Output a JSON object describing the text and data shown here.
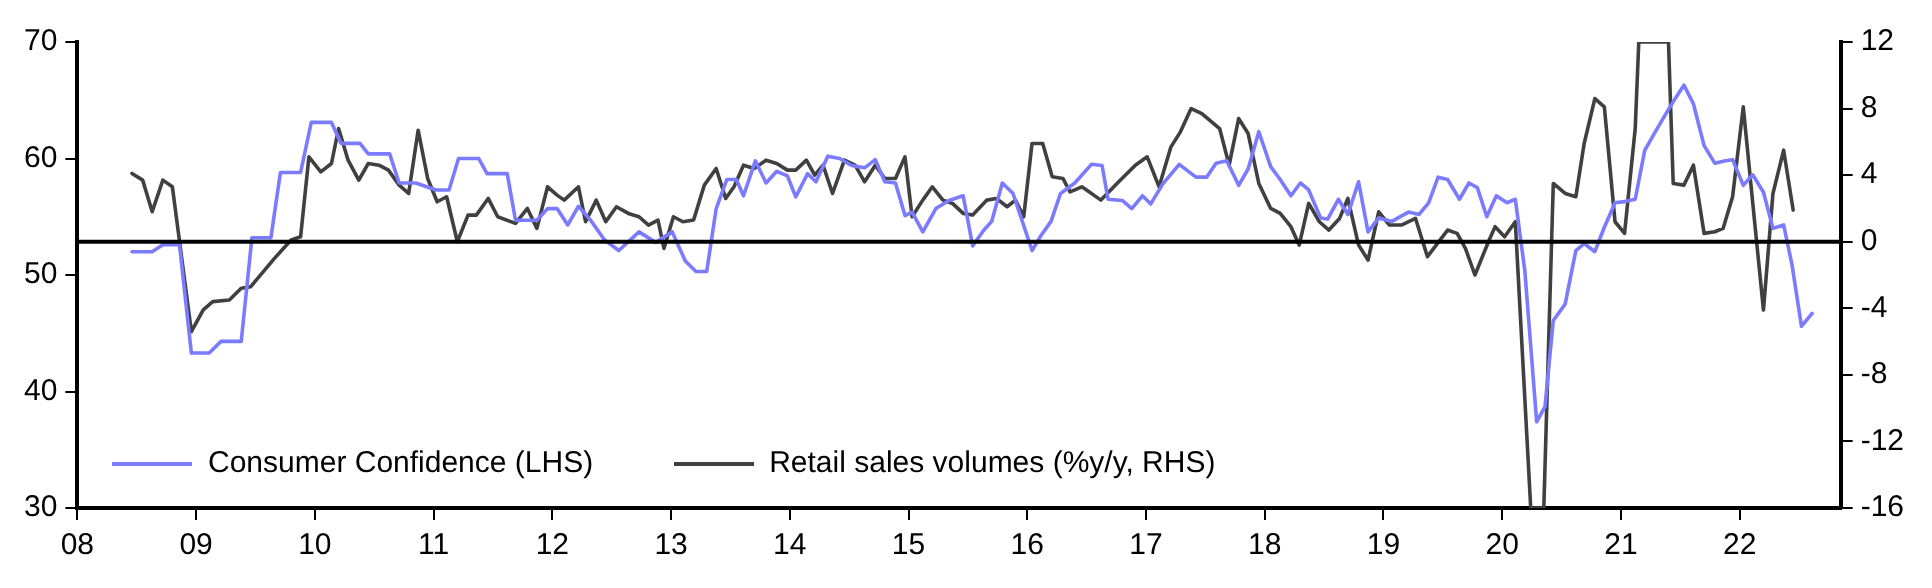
{
  "chart_data": {
    "type": "line",
    "xlim": [
      2008,
      2022.85
    ],
    "xticks": [
      {
        "value": 2008,
        "label": "08"
      },
      {
        "value": 2009,
        "label": "09"
      },
      {
        "value": 2010,
        "label": "10"
      },
      {
        "value": 2011,
        "label": "11"
      },
      {
        "value": 2012,
        "label": "12"
      },
      {
        "value": 2013,
        "label": "13"
      },
      {
        "value": 2014,
        "label": "14"
      },
      {
        "value": 2015,
        "label": "15"
      },
      {
        "value": 2016,
        "label": "16"
      },
      {
        "value": 2017,
        "label": "17"
      },
      {
        "value": 2018,
        "label": "18"
      },
      {
        "value": 2019,
        "label": "19"
      },
      {
        "value": 2020,
        "label": "20"
      },
      {
        "value": 2021,
        "label": "21"
      },
      {
        "value": 2022,
        "label": "22"
      }
    ],
    "ylim": [
      30,
      70
    ],
    "yticks": [
      30,
      40,
      50,
      60,
      70
    ],
    "y2lim": [
      -16,
      12
    ],
    "y2ticks": [
      -16,
      -12,
      -8,
      -4,
      0,
      4,
      8,
      12
    ],
    "grid": false,
    "legend": "bottom left",
    "marker": "none",
    "line_style": "solid",
    "ref_lines": [
      {
        "axis": "y2",
        "value": 0,
        "color": "#000000"
      }
    ],
    "series": [
      {
        "name": "Consumer Confidence (LHS)",
        "color": "#7b7bff",
        "x": [
          2008.46,
          2008.63,
          2008.72,
          2008.86,
          2008.96,
          2009.11,
          2009.21,
          2009.38,
          2009.47,
          2009.63,
          2009.71,
          2009.88,
          2009.97,
          2010.14,
          2010.22,
          2010.38,
          2010.45,
          2010.63,
          2010.71,
          2010.85,
          2011.02,
          2011.13,
          2011.21,
          2011.38,
          2011.45,
          2011.62,
          2011.69,
          2011.87,
          2011.96,
          2012.04,
          2012.13,
          2012.22,
          2012.33,
          2012.44,
          2012.56,
          2012.73,
          2012.87,
          2013.01,
          2013.12,
          2013.21,
          2013.3,
          2013.38,
          2013.47,
          2013.55,
          2013.61,
          2013.71,
          2013.8,
          2013.89,
          2013.98,
          2014.05,
          2014.15,
          2014.22,
          2014.32,
          2014.42,
          2014.52,
          2014.63,
          2014.72,
          2014.8,
          2014.89,
          2014.97,
          2015.03,
          2015.12,
          2015.23,
          2015.34,
          2015.46,
          2015.54,
          2015.63,
          2015.7,
          2015.79,
          2015.88,
          2016.04,
          2016.11,
          2016.2,
          2016.28,
          2016.4,
          2016.54,
          2016.63,
          2016.68,
          2016.8,
          2016.88,
          2016.97,
          2017.04,
          2017.14,
          2017.28,
          2017.42,
          2017.51,
          2017.59,
          2017.68,
          2017.78,
          2017.86,
          2017.95,
          2018.05,
          2018.13,
          2018.22,
          2018.3,
          2018.37,
          2018.47,
          2018.53,
          2018.62,
          2018.7,
          2018.79,
          2018.87,
          2018.96,
          2019.07,
          2019.21,
          2019.3,
          2019.38,
          2019.46,
          2019.54,
          2019.64,
          2019.72,
          2019.79,
          2019.87,
          2019.95,
          2020.04,
          2020.11,
          2020.19,
          2020.29,
          2020.36,
          2020.43,
          2020.53,
          2020.62,
          2020.69,
          2020.78,
          2020.86,
          2020.95,
          2021.03,
          2021.12,
          2021.2,
          2021.29,
          2021.37,
          2021.46,
          2021.53,
          2021.61,
          2021.7,
          2021.79,
          2021.88,
          2021.94,
          2022.03,
          2022.11,
          2022.2,
          2022.28,
          2022.37,
          2022.44,
          2022.52,
          2022.61
        ],
        "values": [
          52,
          52,
          52.6,
          52.6,
          43.3,
          43.3,
          44.3,
          44.3,
          53.2,
          53.2,
          58.8,
          58.8,
          63.1,
          63.1,
          61.3,
          61.3,
          60.4,
          60.4,
          57.9,
          57.9,
          57.3,
          57.3,
          60,
          60,
          58.7,
          58.7,
          54.7,
          54.7,
          55.7,
          55.7,
          54.3,
          55.9,
          54.6,
          53,
          52.1,
          53.7,
          52.8,
          53.7,
          51.2,
          50.3,
          50.3,
          55.7,
          58.2,
          58.2,
          56.8,
          59.8,
          57.9,
          58.9,
          58.5,
          56.7,
          58.7,
          58,
          60.2,
          60,
          59.4,
          59.2,
          59.9,
          58,
          57.9,
          55.1,
          55.4,
          53.7,
          55.7,
          56.4,
          56.8,
          52.5,
          53.8,
          54.6,
          57.9,
          57,
          52.1,
          53.3,
          54.6,
          57,
          57.9,
          59.5,
          59.4,
          56.5,
          56.4,
          55.7,
          56.8,
          56.1,
          57.8,
          59.5,
          58.4,
          58.4,
          59.6,
          59.8,
          57.7,
          59.1,
          62.3,
          59.3,
          58.2,
          56.8,
          57.9,
          57.3,
          54.9,
          54.8,
          56.5,
          55.2,
          58,
          53.7,
          54.9,
          54.6,
          55.4,
          55.2,
          56.2,
          58.4,
          58.2,
          56.5,
          57.9,
          57.5,
          55,
          56.8,
          56.2,
          56.5,
          50.4,
          37.4,
          38.7,
          46.1,
          47.5,
          52.1,
          52.7,
          52,
          54.1,
          56.2,
          56.3,
          56.5,
          60.7,
          62.3,
          63.7,
          65.2,
          66.3,
          64.7,
          61.1,
          59.6,
          59.8,
          59.9,
          57.7,
          58.6,
          57.1,
          54,
          54.3,
          50.9,
          45.6,
          46.7
        ]
      },
      {
        "name": "Retail sales volumes (%y/y, RHS)",
        "color": "#404040",
        "axis": "y2",
        "x": [
          2008.46,
          2008.55,
          2008.63,
          2008.72,
          2008.8,
          2008.96,
          2009.06,
          2009.14,
          2009.28,
          2009.38,
          2009.46,
          2009.66,
          2009.8,
          2009.88,
          2009.95,
          2010.05,
          2010.14,
          2010.2,
          2010.28,
          2010.37,
          2010.45,
          2010.54,
          2010.62,
          2010.71,
          2010.79,
          2010.87,
          2010.95,
          2011.03,
          2011.11,
          2011.2,
          2011.29,
          2011.36,
          2011.46,
          2011.54,
          2011.69,
          2011.79,
          2011.87,
          2011.96,
          2012.04,
          2012.1,
          2012.22,
          2012.28,
          2012.37,
          2012.45,
          2012.54,
          2012.64,
          2012.73,
          2012.81,
          2012.89,
          2012.94,
          2013.02,
          2013.1,
          2013.19,
          2013.28,
          2013.38,
          2013.46,
          2013.53,
          2013.61,
          2013.7,
          2013.8,
          2013.89,
          2013.98,
          2014.05,
          2014.14,
          2014.21,
          2014.28,
          2014.36,
          2014.46,
          2014.55,
          2014.63,
          2014.72,
          2014.8,
          2014.89,
          2014.97,
          2015.03,
          2015.12,
          2015.2,
          2015.29,
          2015.37,
          2015.46,
          2015.54,
          2015.66,
          2015.74,
          2015.83,
          2015.9,
          2015.97,
          2016.04,
          2016.13,
          2016.21,
          2016.3,
          2016.36,
          2016.46,
          2016.62,
          2016.77,
          2016.91,
          2017.01,
          2017.11,
          2017.21,
          2017.29,
          2017.38,
          2017.47,
          2017.62,
          2017.7,
          2017.78,
          2017.86,
          2017.95,
          2018.05,
          2018.13,
          2018.22,
          2018.29,
          2018.37,
          2018.46,
          2018.54,
          2018.63,
          2018.7,
          2018.79,
          2018.87,
          2018.96,
          2019.05,
          2019.15,
          2019.27,
          2019.37,
          2019.54,
          2019.62,
          2019.69,
          2019.77,
          2019.89,
          2019.94,
          2020.02,
          2020.11,
          2020.24,
          2020.35,
          2020.43,
          2020.53,
          2020.62,
          2020.69,
          2020.78,
          2020.86,
          2020.95,
          2021.03,
          2021.12,
          2021.15,
          2021.4,
          2021.44,
          2021.53,
          2021.61,
          2021.7,
          2021.79,
          2021.86,
          2021.94,
          2022.03,
          2022.11,
          2022.2,
          2022.28,
          2022.37,
          2022.45
        ],
        "values": [
          4.1,
          3.7,
          1.8,
          3.7,
          3.3,
          -5.4,
          -4.1,
          -3.6,
          -3.5,
          -2.8,
          -2.7,
          -1,
          0.1,
          0.3,
          5.1,
          4.2,
          4.7,
          6.8,
          4.9,
          3.7,
          4.7,
          4.6,
          4.3,
          3.4,
          2.9,
          6.7,
          3.8,
          2.4,
          2.7,
          0,
          1.6,
          1.6,
          2.6,
          1.5,
          1.1,
          2,
          0.8,
          3.3,
          2.8,
          2.5,
          3.3,
          1.2,
          2.5,
          1.2,
          2.1,
          1.7,
          1.5,
          1,
          1.3,
          -0.4,
          1.5,
          1.2,
          1.3,
          3.4,
          4.4,
          2.6,
          3.3,
          4.6,
          4.4,
          4.9,
          4.7,
          4.3,
          4.3,
          4.9,
          4,
          4.6,
          2.9,
          4.9,
          4.6,
          3.6,
          4.6,
          3.8,
          3.8,
          5.1,
          1.5,
          2.5,
          3.3,
          2.5,
          2.3,
          1.7,
          1.6,
          2.5,
          2.6,
          2.1,
          2.5,
          1.5,
          5.9,
          5.9,
          3.9,
          3.8,
          3,
          3.3,
          2.5,
          3.6,
          4.6,
          5.1,
          3.3,
          5.7,
          6.6,
          8,
          7.7,
          6.8,
          4.6,
          7.4,
          6.5,
          3.5,
          2,
          1.7,
          0.9,
          -0.2,
          2.3,
          1.2,
          0.7,
          1.4,
          2.6,
          -0.2,
          -1.1,
          1.8,
          1,
          1,
          1.4,
          -0.9,
          0.7,
          0.5,
          -0.4,
          -2,
          0.1,
          0.9,
          0.3,
          1.2,
          -16,
          -16,
          3.5,
          2.9,
          2.7,
          5.9,
          8.6,
          8.1,
          1.2,
          0.5,
          6.8,
          12,
          12,
          3.5,
          3.4,
          4.6,
          0.5,
          0.6,
          0.8,
          2.7,
          8.1,
          2.3,
          -4.1,
          2.9,
          5.5,
          1.9
        ]
      }
    ]
  }
}
